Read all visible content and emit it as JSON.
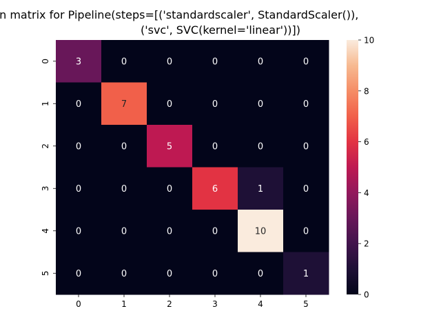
{
  "chart_data": {
    "type": "heatmap",
    "title_lines": [
      "Confusion matrix for Pipeline(steps=[('standardscaler', StandardScaler()),",
      "('svc', SVC(kernel='linear'))])"
    ],
    "x_tick_labels": [
      "0",
      "1",
      "2",
      "3",
      "4",
      "5"
    ],
    "y_tick_labels": [
      "0",
      "1",
      "2",
      "3",
      "4",
      "5"
    ],
    "matrix": [
      [
        3,
        0,
        0,
        0,
        0,
        0
      ],
      [
        0,
        7,
        0,
        0,
        0,
        0
      ],
      [
        0,
        0,
        5,
        0,
        0,
        0
      ],
      [
        0,
        0,
        0,
        6,
        1,
        0
      ],
      [
        0,
        0,
        0,
        0,
        10,
        0
      ],
      [
        0,
        0,
        0,
        0,
        0,
        1
      ]
    ],
    "vmin": 0,
    "vmax": 10,
    "colormap": "rocket",
    "colorbar_ticks": [
      "0",
      "2",
      "4",
      "6",
      "8",
      "10"
    ],
    "xlabel": "",
    "ylabel": ""
  }
}
